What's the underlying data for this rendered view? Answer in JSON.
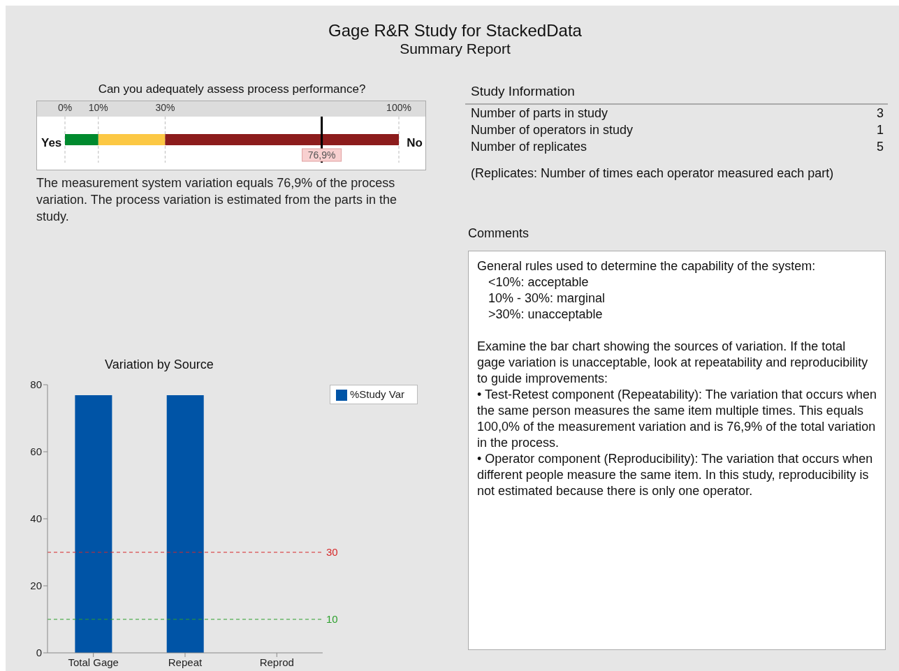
{
  "chart_data": [
    {
      "type": "other",
      "title": "Gage R&R Study for StackedData",
      "subtitle": "Summary Report"
    },
    {
      "type": "bar",
      "title": "Can you adequately assess process performance?",
      "orientation": "horizontal",
      "stacked": true,
      "categories": [
        null
      ],
      "series": [
        {
          "color": "#008a2e",
          "values": [
            10
          ]
        },
        {
          "color": "#fcc844",
          "values": [
            20
          ]
        },
        {
          "color": "#8c1c1c",
          "values": [
            70
          ]
        }
      ],
      "xlim": [
        0,
        100
      ],
      "xticks": [
        {
          "value": 0,
          "label": "0%"
        },
        {
          "value": 10,
          "label": "10%"
        },
        {
          "value": 30,
          "label": "30%"
        },
        {
          "value": 100,
          "label": "100%"
        }
      ],
      "grid": "x",
      "ref_lines": [
        {
          "axis": "x",
          "value": 76.9,
          "label": "76,9%",
          "color": "#000000"
        }
      ],
      "annotations": [
        "Yes",
        "No",
        "The measurement system variation equals 76,9% of the process variation. The process variation is estimated from the parts in the study."
      ]
    },
    {
      "type": "other",
      "title": "Study Information",
      "categories": [
        "Number of parts in study",
        "Number of operators in study",
        "Number of replicates"
      ],
      "values": [
        3,
        1,
        5
      ],
      "data_labels": true,
      "annotations": [
        "(Replicates: Number of times each operator measured each part)"
      ]
    },
    {
      "type": "other",
      "title": "Comments",
      "annotations": [
        "General rules used to determine the capability of the system:",
        "<10%: acceptable",
        "10% - 30%: marginal",
        ">30%: unacceptable",
        "Examine the bar chart showing the sources of variation. If the total gage variation is unacceptable, look at repeatability and reproducibility to guide improvements:",
        "• Test-Retest component (Repeatability): The variation that occurs when the same person measures the same item multiple times. This equals 100,0% of the measurement variation and is 76,9% of the total variation in the process.",
        "• Operator component (Reproducibility): The variation that occurs when different people measure the same item. In this study, reproducibility is not estimated because there is only one operator."
      ]
    },
    {
      "type": "bar",
      "title": "Variation by Source",
      "categories": [
        "Total Gage",
        "Repeat",
        "Reprod"
      ],
      "series": [
        {
          "name": "%Study Var",
          "color": "#0054a6",
          "values": [
            76.9,
            76.9,
            0
          ]
        }
      ],
      "ylim": [
        0,
        80
      ],
      "yticks": [
        0,
        20,
        40,
        60,
        80
      ],
      "legend": "right",
      "ref_lines": [
        {
          "axis": "y",
          "value": 30,
          "label": "30",
          "color": "#d62728",
          "line_style": "dashed"
        },
        {
          "axis": "y",
          "value": 10,
          "label": "10",
          "color": "#2ca02c",
          "line_style": "dashed"
        }
      ]
    }
  ]
}
